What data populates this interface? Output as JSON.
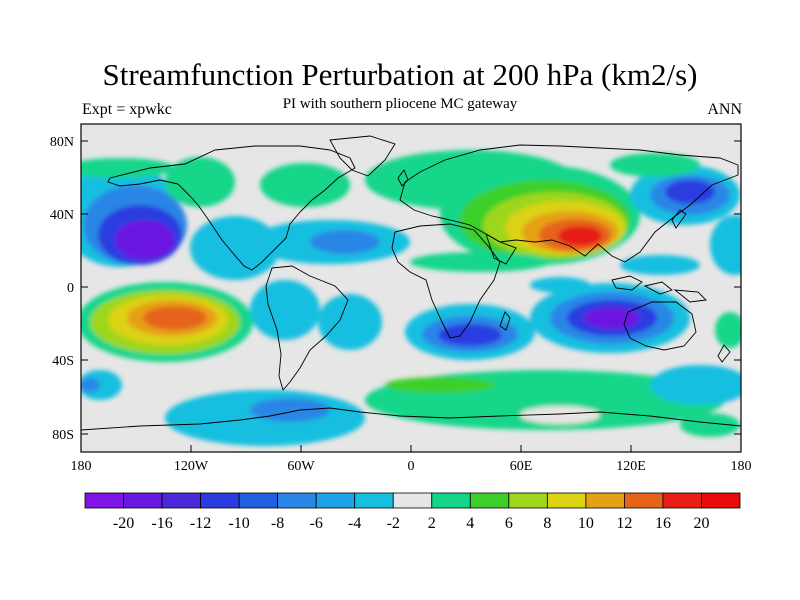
{
  "header": {
    "title": "Streamfunction Perturbation at 200 hPa (km2/s)",
    "subtitle": "PI with southern pliocene MC gateway",
    "left_label": "Expt = xpwkc",
    "right_label": "ANN"
  },
  "axes": {
    "lat_ticks": [
      "80N",
      "40N",
      "0",
      "40S",
      "80S"
    ],
    "lon_ticks": [
      "180",
      "120W",
      "60W",
      "0",
      "60E",
      "120E",
      "180"
    ]
  },
  "colorbar": {
    "labels": [
      "-20",
      "-16",
      "-12",
      "-10",
      "-8",
      "-6",
      "-4",
      "-2",
      "2",
      "4",
      "6",
      "8",
      "10",
      "12",
      "16",
      "20"
    ],
    "colors": [
      "#7f14e6",
      "#6a18e0",
      "#4a2ad8",
      "#2a3ce0",
      "#1f5fe0",
      "#2a86e6",
      "#1fa2e6",
      "#14bfe0",
      "#e6e6e6",
      "#14d68a",
      "#3ccf2c",
      "#9ed61a",
      "#dcd214",
      "#e6a014",
      "#e6641a",
      "#e61e14",
      "#e60a0a"
    ]
  }
}
